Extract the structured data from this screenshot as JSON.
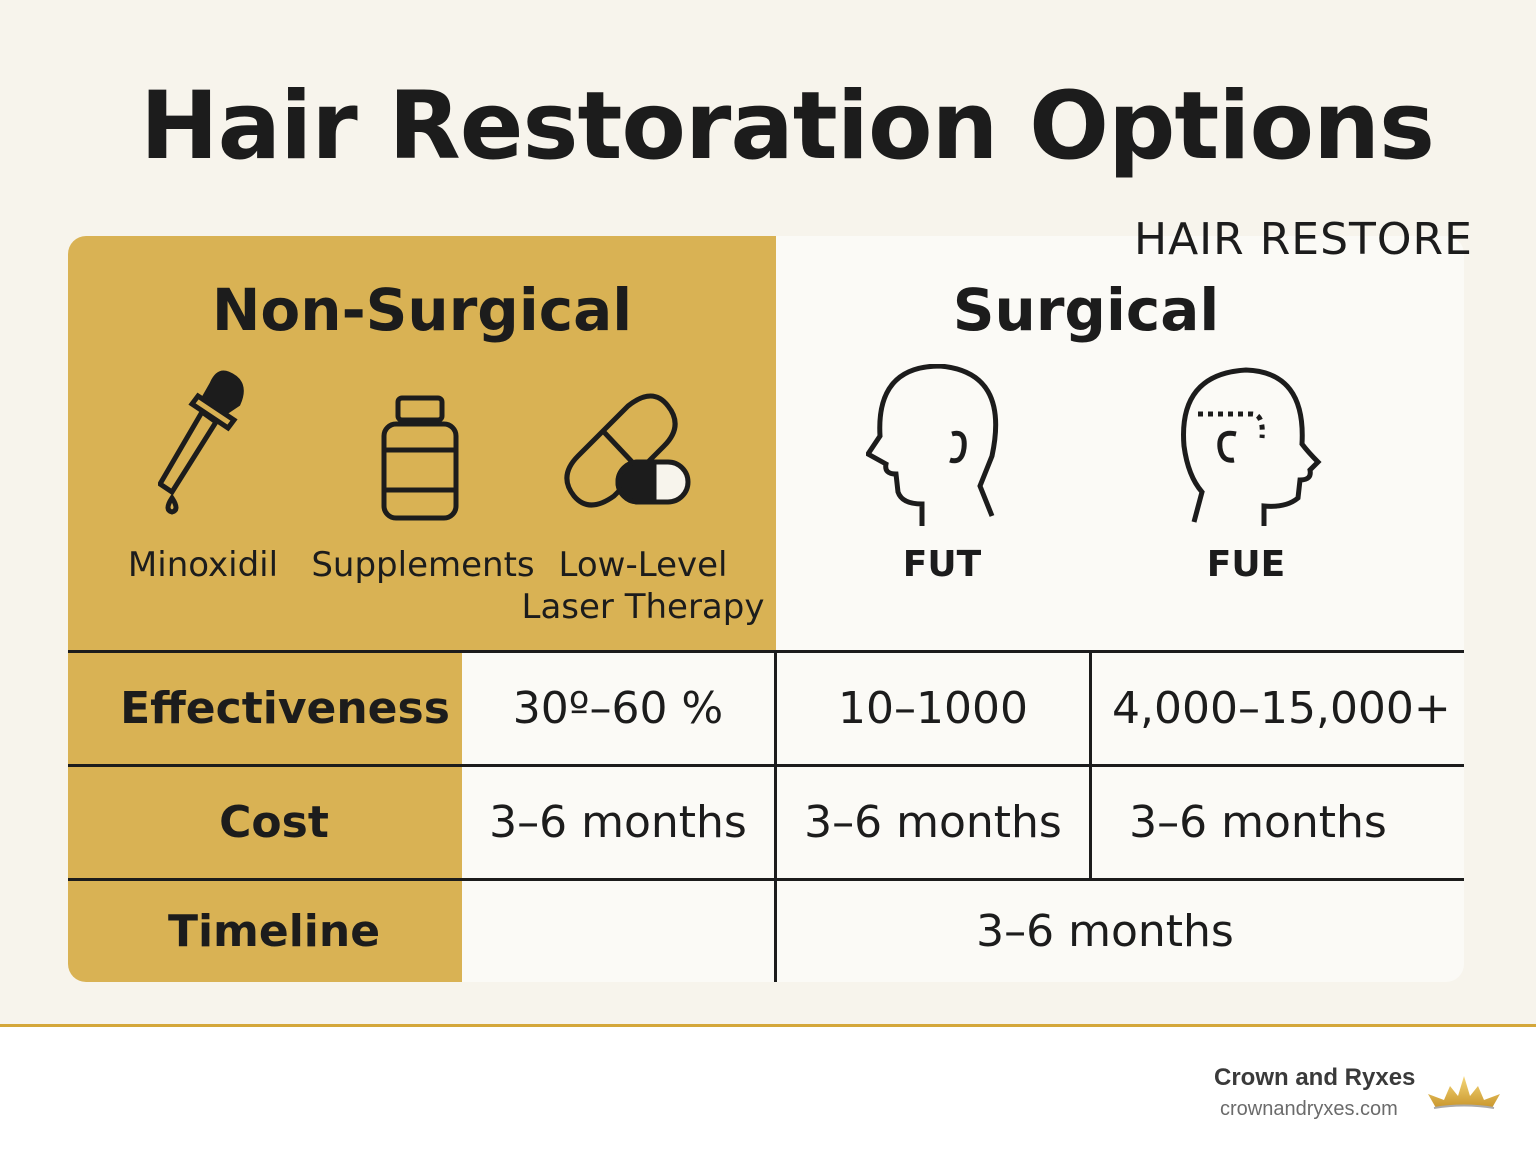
{
  "title": "Hair Restoration Options",
  "brand_top": "HAIR RESTORE",
  "non_surgical": {
    "header": "Non-Surgical",
    "options": [
      {
        "label": "Minoxidil",
        "icon": "dropper-icon"
      },
      {
        "label": "Supplements",
        "icon": "bottle-icon"
      },
      {
        "label": "Low-Level",
        "label2": "Laser Therapy",
        "icon": "capsule-icon"
      }
    ]
  },
  "surgical": {
    "header": "Surgical",
    "options": [
      {
        "label": "FUT",
        "icon": "head-profile-icon"
      },
      {
        "label": "FUE",
        "icon": "head-profile-dotted-icon"
      }
    ]
  },
  "rows": [
    {
      "label": "Effectiveness",
      "cells": [
        "30º–60 %",
        "10–1000",
        "4,000–15,000+"
      ]
    },
    {
      "label": "Cost",
      "cells": [
        "3–6 months",
        "3–6 months",
        "3–6 months"
      ]
    },
    {
      "label": "Timeline",
      "cells": [
        "",
        "3–6 months"
      ]
    }
  ],
  "footer": {
    "name": "Crown and Ryxes",
    "url": "crownandryxes.com",
    "logo": "crown-icon"
  },
  "colors": {
    "gold": "#d9b254",
    "background": "#f7f4ec",
    "text": "#1c1c1c"
  }
}
